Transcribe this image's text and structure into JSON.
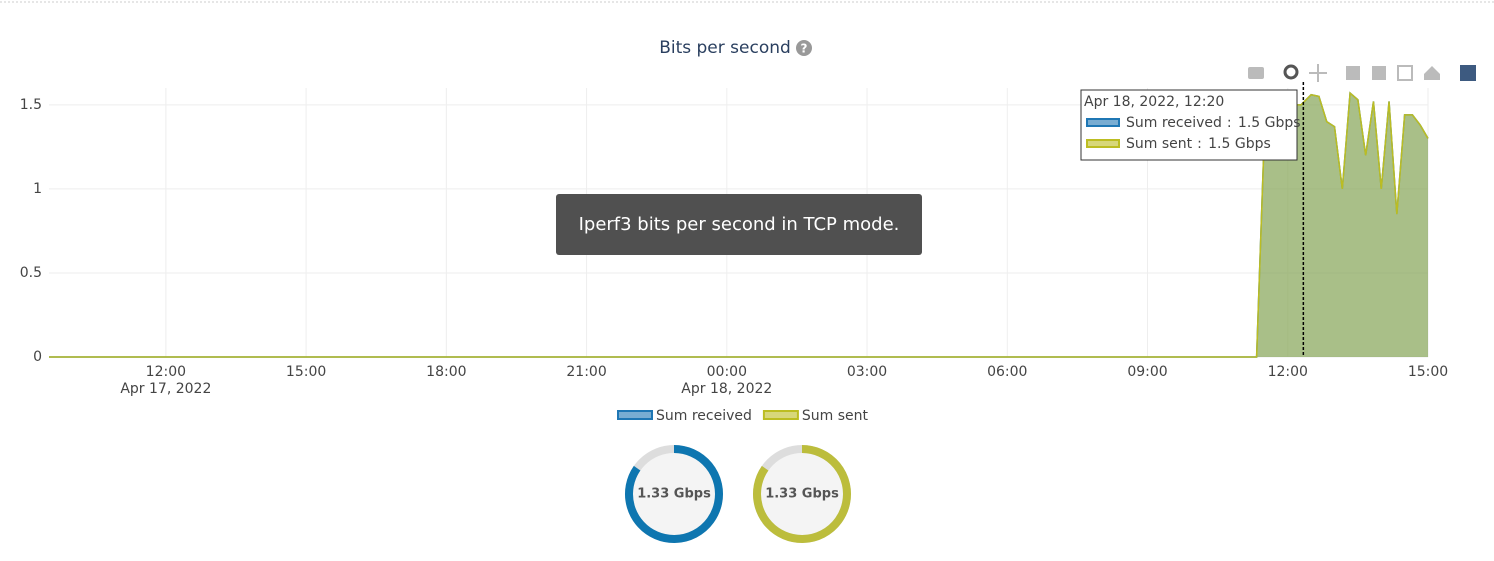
{
  "chart_data": {
    "type": "area",
    "title": "Bits per second",
    "description": "Iperf3 bits per second in TCP mode.",
    "x": [
      "2022-04-17 09:30",
      "2022-04-18 11:20",
      "2022-04-18 11:29",
      "2022-04-18 11:38",
      "2022-04-18 12:17",
      "2022-04-18 12:30",
      "2022-04-18 12:40",
      "2022-04-18 12:50",
      "2022-04-18 13:00",
      "2022-04-18 13:10",
      "2022-04-18 13:20",
      "2022-04-18 13:30",
      "2022-04-18 13:40",
      "2022-04-18 13:50",
      "2022-04-18 14:00",
      "2022-04-18 14:10",
      "2022-04-18 14:20",
      "2022-04-18 14:30",
      "2022-04-18 14:40",
      "2022-04-18 14:50",
      "2022-04-18 15:00"
    ],
    "series": [
      {
        "name": "Sum received",
        "color": "#1f77b4",
        "values": [
          0,
          0,
          1.2,
          1.5,
          1.5,
          1.56,
          1.55,
          1.4,
          1.37,
          1.0,
          1.57,
          1.53,
          1.2,
          1.52,
          1.0,
          1.52,
          0.85,
          1.44,
          1.44,
          1.38,
          1.3
        ]
      },
      {
        "name": "Sum sent",
        "color": "#bcbd22",
        "values": [
          0,
          0,
          1.2,
          1.5,
          1.5,
          1.56,
          1.55,
          1.4,
          1.37,
          1.0,
          1.57,
          1.53,
          1.2,
          1.52,
          1.0,
          1.52,
          0.85,
          1.44,
          1.44,
          1.38,
          1.3
        ]
      }
    ],
    "xlim": [
      "2022-04-17 09:30",
      "2022-04-18 15:00"
    ],
    "xticks": [
      {
        "value": "2022-04-17 12:00",
        "label": "12:00\nApr 17, 2022"
      },
      {
        "value": "2022-04-17 15:00",
        "label": "15:00"
      },
      {
        "value": "2022-04-17 18:00",
        "label": "18:00"
      },
      {
        "value": "2022-04-17 21:00",
        "label": "21:00"
      },
      {
        "value": "2022-04-18 00:00",
        "label": "00:00\nApr 18, 2022"
      },
      {
        "value": "2022-04-18 03:00",
        "label": "03:00"
      },
      {
        "value": "2022-04-18 06:00",
        "label": "06:00"
      },
      {
        "value": "2022-04-18 09:00",
        "label": "09:00"
      },
      {
        "value": "2022-04-18 12:00",
        "label": "12:00"
      },
      {
        "value": "2022-04-18 15:00",
        "label": "15:00"
      }
    ],
    "ylim": [
      0,
      1.6
    ],
    "yticks": [
      0,
      0.5,
      1,
      1.5
    ],
    "grid": true,
    "hover": {
      "x": "2022-04-18 12:20",
      "x_label": "Apr 18, 2022, 12:20",
      "items": [
        {
          "name": "Sum received",
          "value": 1.5,
          "label": "1.5 Gbps"
        },
        {
          "name": "Sum sent",
          "value": 1.5,
          "label": "1.5 Gbps"
        }
      ]
    },
    "gauges": [
      {
        "value": 1.33,
        "label": "1.33 Gbps",
        "color": "#0e76b0"
      },
      {
        "value": 1.33,
        "label": "1.33 Gbps",
        "color": "#bcbd3c"
      }
    ]
  }
}
